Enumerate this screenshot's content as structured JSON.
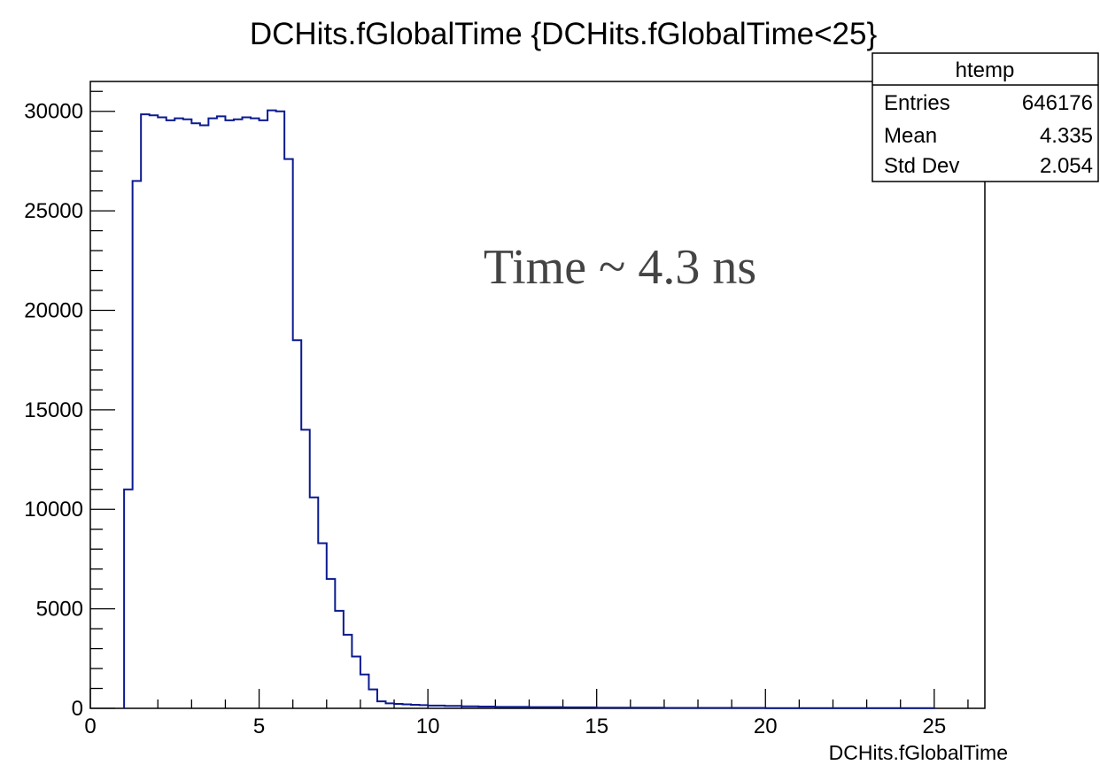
{
  "chart_data": {
    "type": "histogram",
    "title": "DCHits.fGlobalTime {DCHits.fGlobalTime<25}",
    "xlabel": "DCHits.fGlobalTime",
    "ylabel": "",
    "xlim": [
      0,
      26.5
    ],
    "ylim": [
      0,
      31500
    ],
    "xticks": [
      0,
      5,
      10,
      15,
      20,
      25
    ],
    "yticks": [
      0,
      5000,
      10000,
      15000,
      20000,
      25000,
      30000
    ],
    "line_color": "#0b1a8f",
    "bin_edges": [
      1.0,
      1.25,
      1.5,
      1.75,
      2.0,
      2.25,
      2.5,
      2.75,
      3.0,
      3.25,
      3.5,
      3.75,
      4.0,
      4.25,
      4.5,
      4.75,
      5.0,
      5.25,
      5.5,
      5.75,
      6.0,
      6.25,
      6.5,
      6.75,
      7.0,
      7.25,
      7.5,
      7.75,
      8.0,
      8.25,
      8.5,
      8.75,
      9.0,
      9.25,
      9.5,
      9.75,
      10.0,
      10.5,
      11.0,
      11.5,
      12.0,
      13.0,
      14.0,
      15.0,
      17.0,
      20.0,
      25.0
    ],
    "counts": [
      11000,
      26500,
      29850,
      29800,
      29700,
      29550,
      29650,
      29600,
      29400,
      29300,
      29650,
      29750,
      29550,
      29600,
      29700,
      29650,
      29550,
      30050,
      30000,
      27600,
      18500,
      14000,
      10600,
      8300,
      6500,
      4900,
      3700,
      2600,
      1700,
      950,
      350,
      250,
      220,
      200,
      180,
      160,
      140,
      120,
      100,
      90,
      75,
      60,
      50,
      35,
      20,
      10
    ],
    "annotation": "Time ~ 4.3 ns",
    "stats_box": {
      "name": "htemp",
      "rows": [
        {
          "label": "Entries",
          "value": "646176"
        },
        {
          "label": "Mean",
          "value": "4.335"
        },
        {
          "label": "Std Dev",
          "value": "2.054"
        }
      ]
    }
  }
}
